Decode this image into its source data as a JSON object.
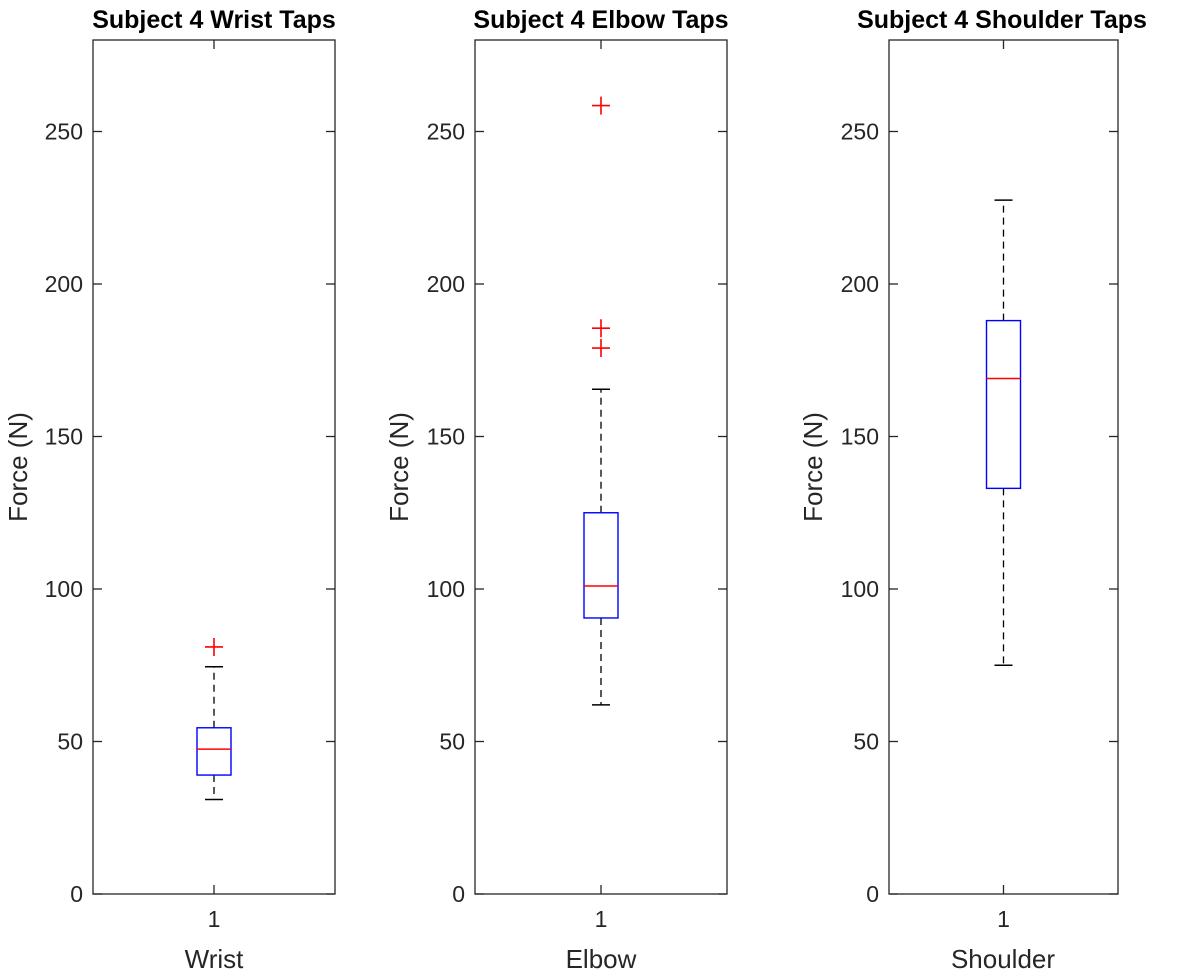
{
  "chart_data": [
    {
      "type": "box",
      "title": "Subject 4 Wrist Taps",
      "xlabel": "Wrist",
      "ylabel": "Force (N)",
      "categories": [
        "1"
      ],
      "ylim": [
        0,
        280
      ],
      "yticks": [
        "0",
        "50",
        "100",
        "150",
        "200",
        "250"
      ],
      "grid": false,
      "box": {
        "whisker_low": 31,
        "q1": 39,
        "median": 47.5,
        "q3": 54.5,
        "whisker_high": 74.5
      },
      "outliers": [
        81
      ],
      "colors": {
        "box": "#0000ff",
        "median": "#ff0000",
        "whisker": "#000000",
        "outlier": "#ff0000"
      }
    },
    {
      "type": "box",
      "title": "Subject 4 Elbow Taps",
      "xlabel": "Elbow",
      "ylabel": "Force (N)",
      "categories": [
        "1"
      ],
      "ylim": [
        0,
        280
      ],
      "yticks": [
        "0",
        "50",
        "100",
        "150",
        "200",
        "250"
      ],
      "grid": false,
      "box": {
        "whisker_low": 62,
        "q1": 90.5,
        "median": 101,
        "q3": 125,
        "whisker_high": 165.5
      },
      "outliers": [
        179,
        185.5,
        258.5
      ],
      "colors": {
        "box": "#0000ff",
        "median": "#ff0000",
        "whisker": "#000000",
        "outlier": "#ff0000"
      }
    },
    {
      "type": "box",
      "title": "Subject 4 Shoulder Taps",
      "xlabel": "Shoulder",
      "ylabel": "Force (N)",
      "categories": [
        "1"
      ],
      "ylim": [
        0,
        280
      ],
      "yticks": [
        "0",
        "50",
        "100",
        "150",
        "200",
        "250"
      ],
      "grid": false,
      "box": {
        "whisker_low": 75,
        "q1": 133,
        "median": 169,
        "q3": 188,
        "whisker_high": 227.5
      },
      "outliers": [],
      "colors": {
        "box": "#0000ff",
        "median": "#ff0000",
        "whisker": "#000000",
        "outlier": "#ff0000"
      }
    }
  ]
}
